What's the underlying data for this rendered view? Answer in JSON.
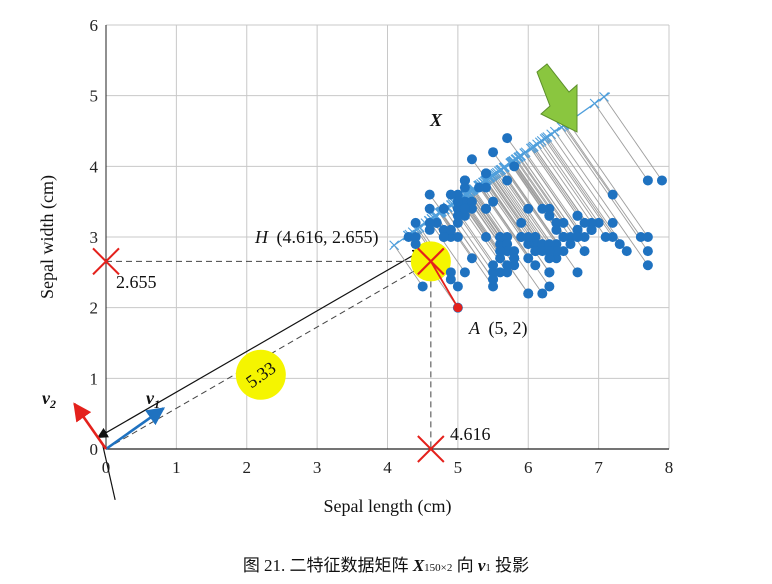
{
  "caption": {
    "prefix": "图 21. 二特征数据矩阵 ",
    "matrix_symbol": "X",
    "matrix_sub": "150×2",
    "middle": " 向 ",
    "vector_symbol": "v",
    "vector_sub": "1",
    "suffix": " 投影"
  },
  "colors": {
    "data_points": "#1f72c0",
    "projection_line": "#4f9fdc",
    "projection_marks": "#4f9fdc",
    "drop_lines": "#9e9e9e",
    "cross_markers": "#e4211c",
    "point_A": "#e4211c",
    "highlight": "#f5f500",
    "v1_vector": "#1f72c0",
    "v2_vector": "#e4211c",
    "arrow_icon": "#8ac63f",
    "grid": "#c8c8c8"
  },
  "chart_data": {
    "type": "scatter",
    "xlabel": "Sepal length (cm)",
    "ylabel": "Sepal width (cm)",
    "xlim": [
      0,
      8
    ],
    "ylim": [
      0,
      6
    ],
    "xticks": [
      "0",
      "1",
      "2",
      "3",
      "4",
      "5",
      "6",
      "7",
      "8"
    ],
    "yticks": [
      "0",
      "1",
      "2",
      "3",
      "4",
      "5",
      "6"
    ],
    "grid": true,
    "data_label": "X",
    "v1": {
      "label": "v",
      "sub": "1",
      "dx": 0.818,
      "dy": 0.576
    },
    "v2": {
      "label": "v",
      "sub": "2",
      "dx": -0.576,
      "dy": 0.818
    },
    "point_A": {
      "label": "A",
      "coords_text": "(5, 2)",
      "x": 5,
      "y": 2
    },
    "point_H": {
      "label": "H",
      "coords_text": "(4.616, 2.655)",
      "x": 4.616,
      "y": 2.655
    },
    "x_marker_value": "4.616",
    "y_marker_value": "2.655",
    "projection_length": "5.33",
    "points": [
      [
        5.1,
        3.5
      ],
      [
        4.9,
        3.0
      ],
      [
        4.7,
        3.2
      ],
      [
        4.6,
        3.1
      ],
      [
        5.0,
        3.6
      ],
      [
        5.4,
        3.9
      ],
      [
        4.6,
        3.4
      ],
      [
        5.0,
        3.4
      ],
      [
        4.4,
        2.9
      ],
      [
        4.9,
        3.1
      ],
      [
        5.4,
        3.7
      ],
      [
        4.8,
        3.4
      ],
      [
        4.8,
        3.0
      ],
      [
        4.3,
        3.0
      ],
      [
        5.8,
        4.0
      ],
      [
        5.7,
        4.4
      ],
      [
        5.4,
        3.9
      ],
      [
        5.1,
        3.5
      ],
      [
        5.7,
        3.8
      ],
      [
        5.1,
        3.8
      ],
      [
        5.4,
        3.4
      ],
      [
        5.1,
        3.7
      ],
      [
        4.6,
        3.6
      ],
      [
        5.1,
        3.3
      ],
      [
        4.8,
        3.4
      ],
      [
        5.0,
        3.0
      ],
      [
        5.0,
        3.4
      ],
      [
        5.2,
        3.5
      ],
      [
        5.2,
        3.4
      ],
      [
        4.7,
        3.2
      ],
      [
        4.8,
        3.1
      ],
      [
        5.4,
        3.4
      ],
      [
        5.2,
        4.1
      ],
      [
        5.5,
        4.2
      ],
      [
        4.9,
        3.1
      ],
      [
        5.0,
        3.2
      ],
      [
        5.5,
        3.5
      ],
      [
        4.9,
        3.6
      ],
      [
        4.4,
        3.0
      ],
      [
        5.1,
        3.4
      ],
      [
        5.0,
        3.5
      ],
      [
        4.5,
        2.3
      ],
      [
        4.4,
        3.2
      ],
      [
        5.0,
        3.5
      ],
      [
        5.1,
        3.8
      ],
      [
        4.8,
        3.0
      ],
      [
        5.1,
        3.8
      ],
      [
        4.6,
        3.2
      ],
      [
        5.3,
        3.7
      ],
      [
        5.0,
        3.3
      ],
      [
        7.0,
        3.2
      ],
      [
        6.4,
        3.2
      ],
      [
        6.9,
        3.1
      ],
      [
        5.5,
        2.3
      ],
      [
        6.5,
        2.8
      ],
      [
        5.7,
        2.8
      ],
      [
        6.3,
        3.3
      ],
      [
        4.9,
        2.4
      ],
      [
        6.6,
        2.9
      ],
      [
        5.2,
        2.7
      ],
      [
        5.0,
        2.0
      ],
      [
        5.9,
        3.0
      ],
      [
        6.0,
        2.2
      ],
      [
        6.1,
        2.9
      ],
      [
        5.6,
        2.9
      ],
      [
        6.7,
        3.1
      ],
      [
        5.6,
        3.0
      ],
      [
        5.8,
        2.7
      ],
      [
        6.2,
        2.2
      ],
      [
        5.6,
        2.5
      ],
      [
        5.9,
        3.2
      ],
      [
        6.1,
        2.8
      ],
      [
        6.3,
        2.5
      ],
      [
        6.1,
        2.8
      ],
      [
        6.4,
        2.9
      ],
      [
        6.6,
        3.0
      ],
      [
        6.8,
        2.8
      ],
      [
        6.7,
        3.0
      ],
      [
        6.0,
        2.9
      ],
      [
        5.7,
        2.6
      ],
      [
        5.5,
        2.4
      ],
      [
        5.5,
        2.4
      ],
      [
        5.8,
        2.7
      ],
      [
        6.0,
        2.7
      ],
      [
        5.4,
        3.0
      ],
      [
        6.0,
        3.4
      ],
      [
        6.7,
        3.1
      ],
      [
        6.3,
        2.3
      ],
      [
        5.6,
        3.0
      ],
      [
        5.5,
        2.5
      ],
      [
        5.5,
        2.6
      ],
      [
        6.1,
        3.0
      ],
      [
        5.8,
        2.6
      ],
      [
        5.0,
        2.3
      ],
      [
        5.6,
        2.7
      ],
      [
        5.7,
        3.0
      ],
      [
        5.7,
        2.9
      ],
      [
        6.2,
        2.9
      ],
      [
        5.1,
        2.5
      ],
      [
        5.7,
        2.8
      ],
      [
        6.3,
        3.3
      ],
      [
        5.8,
        2.7
      ],
      [
        7.1,
        3.0
      ],
      [
        6.3,
        2.9
      ],
      [
        6.5,
        3.0
      ],
      [
        7.6,
        3.0
      ],
      [
        4.9,
        2.5
      ],
      [
        7.3,
        2.9
      ],
      [
        6.7,
        2.5
      ],
      [
        7.2,
        3.6
      ],
      [
        6.5,
        3.2
      ],
      [
        6.4,
        2.7
      ],
      [
        6.8,
        3.0
      ],
      [
        5.7,
        2.5
      ],
      [
        5.8,
        2.8
      ],
      [
        6.4,
        3.2
      ],
      [
        6.5,
        3.0
      ],
      [
        7.7,
        3.8
      ],
      [
        7.7,
        2.6
      ],
      [
        6.0,
        2.2
      ],
      [
        6.9,
        3.2
      ],
      [
        5.6,
        2.8
      ],
      [
        7.7,
        2.8
      ],
      [
        6.3,
        2.7
      ],
      [
        6.7,
        3.3
      ],
      [
        7.2,
        3.2
      ],
      [
        6.2,
        2.8
      ],
      [
        6.1,
        3.0
      ],
      [
        6.4,
        2.8
      ],
      [
        7.2,
        3.0
      ],
      [
        7.4,
        2.8
      ],
      [
        7.9,
        3.8
      ],
      [
        6.4,
        2.8
      ],
      [
        6.3,
        2.8
      ],
      [
        6.1,
        2.6
      ],
      [
        7.7,
        3.0
      ],
      [
        6.3,
        3.4
      ],
      [
        6.4,
        3.1
      ],
      [
        6.0,
        3.0
      ],
      [
        6.9,
        3.1
      ],
      [
        6.7,
        3.1
      ],
      [
        6.9,
        3.1
      ],
      [
        5.8,
        2.7
      ],
      [
        6.8,
        3.2
      ],
      [
        6.7,
        3.3
      ],
      [
        6.7,
        3.0
      ],
      [
        6.3,
        2.5
      ],
      [
        6.5,
        3.0
      ],
      [
        6.2,
        3.4
      ],
      [
        5.9,
        3.0
      ]
    ]
  }
}
